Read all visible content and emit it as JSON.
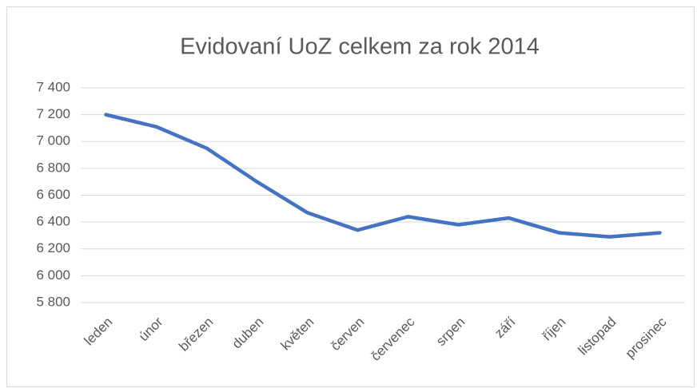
{
  "chart_data": {
    "type": "line",
    "title": "Evidovaní UoZ celkem za rok 2014",
    "categories": [
      "leden",
      "únor",
      "březen",
      "duben",
      "květen",
      "červen",
      "červenec",
      "srpen",
      "září",
      "říjen",
      "listopad",
      "prosinec"
    ],
    "series": [
      {
        "name": "Evidovaní UoZ",
        "color": "#4472c4",
        "values": [
          7200,
          7110,
          6950,
          6700,
          6470,
          6340,
          6440,
          6380,
          6430,
          6320,
          6290,
          6320
        ]
      }
    ],
    "ylim": [
      5800,
      7400
    ],
    "yticks": [
      {
        "value": 5800,
        "label": "5 800"
      },
      {
        "value": 6000,
        "label": "6 000"
      },
      {
        "value": 6200,
        "label": "6 200"
      },
      {
        "value": 6400,
        "label": "6 400"
      },
      {
        "value": 6600,
        "label": "6 600"
      },
      {
        "value": 6800,
        "label": "6 800"
      },
      {
        "value": 7000,
        "label": "7 000"
      },
      {
        "value": 7200,
        "label": "7 200"
      },
      {
        "value": 7400,
        "label": "7 400"
      }
    ],
    "grid": true
  }
}
